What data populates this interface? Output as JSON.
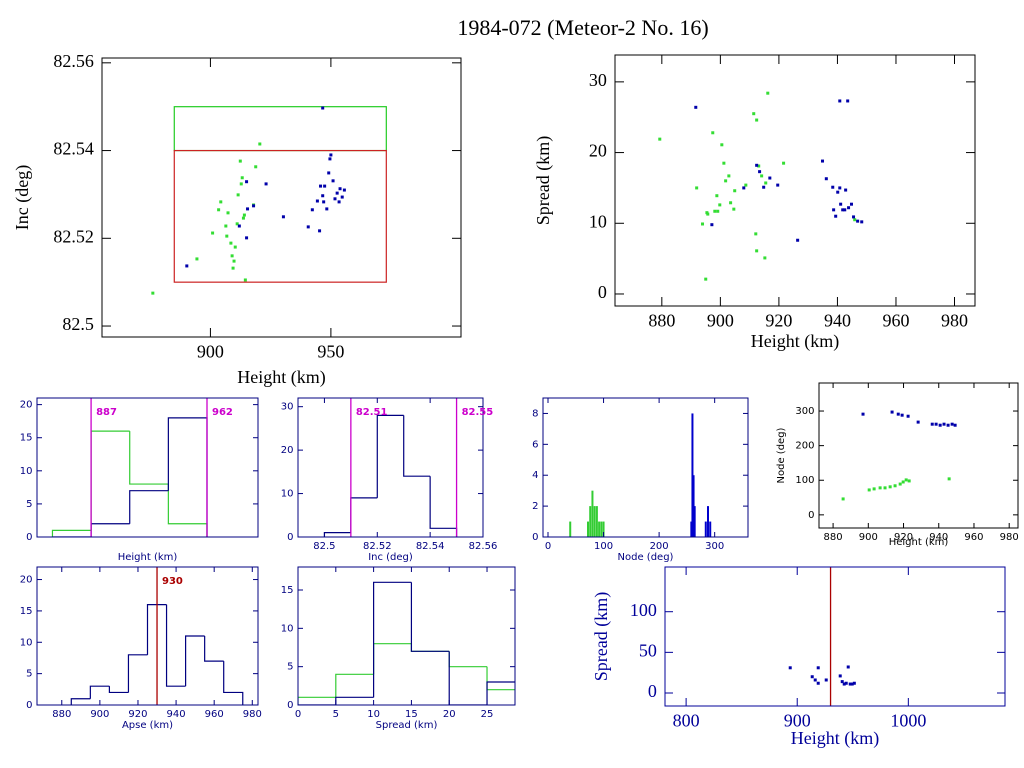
{
  "title": "1984-072 (Meteor-2 No. 16)",
  "chart_data": [
    {
      "type": "scatter",
      "xlabel": "Height (km)",
      "ylabel": "Inc (deg)",
      "text_color": "#000000",
      "xlim": [
        855,
        1004
      ],
      "ylim": [
        82.4975,
        82.5611
      ],
      "xticks": [
        900,
        950
      ],
      "yticks": [
        82.5,
        82.52,
        82.54,
        82.56
      ],
      "boxes": [
        {
          "color": "#22cc22",
          "x": [
            885,
            973
          ],
          "y": [
            82.54,
            82.55
          ]
        },
        {
          "color": "#cc2222",
          "x": [
            885,
            973
          ],
          "y": [
            82.51,
            82.54
          ]
        }
      ],
      "series": [
        {
          "color": "#33dd33",
          "x": [
            876.1,
            894.4,
            900.9,
            903.4,
            904.3,
            907.3,
            906.4,
            906.8,
            908.5,
            909.0,
            909.4,
            909.8,
            910.3,
            911.1,
            911.5,
            912.4,
            912.8,
            913.2,
            913.7,
            914.1,
            914.5,
            917.9,
            918.8,
            920.5
          ],
          "values": [
            82.5075,
            82.5153,
            82.5212,
            82.5265,
            82.5283,
            82.5258,
            82.5228,
            82.5205,
            82.5189,
            82.516,
            82.5132,
            82.5148,
            82.518,
            82.5233,
            82.5299,
            82.5376,
            82.5324,
            82.5338,
            82.5246,
            82.5253,
            82.5105,
            82.5276,
            82.5363,
            82.5415
          ]
        },
        {
          "color": "#0000aa",
          "x": [
            890.2,
            915.0,
            912.0,
            915.0,
            915.4,
            917.9,
            923.1,
            930.3,
            940.6,
            942.3,
            944.4,
            945.3,
            945.7,
            946.6,
            947.0,
            947.4,
            948.3,
            949.1,
            949.6,
            950.0,
            950.9,
            951.7,
            952.6,
            953.4,
            953.8,
            954.7,
            955.6,
            946.6
          ],
          "values": [
            82.5137,
            82.5329,
            82.5228,
            82.5201,
            82.5267,
            82.5274,
            82.5324,
            82.5249,
            82.5226,
            82.5265,
            82.5285,
            82.5217,
            82.5319,
            82.5297,
            82.5283,
            82.5319,
            82.5267,
            82.5349,
            82.5381,
            82.539,
            82.5331,
            82.529,
            82.5303,
            82.5283,
            82.5313,
            82.5294,
            82.531,
            82.5497
          ]
        }
      ]
    },
    {
      "type": "scatter",
      "xlabel": "Height (km)",
      "ylabel": "Spread (km)",
      "text_color": "#000000",
      "xlim": [
        864,
        987
      ],
      "ylim": [
        -1.7,
        33.8
      ],
      "xticks": [
        880,
        900,
        920,
        940,
        960,
        980
      ],
      "yticks": [
        0,
        10,
        20,
        30
      ],
      "series": [
        {
          "color": "#33dd33",
          "x": [
            879.3,
            895.0,
            891.9,
            893.9,
            895.4,
            895.7,
            897.4,
            898.1,
            898.8,
            899.1,
            899.8,
            900.5,
            901.2,
            901.8,
            902.9,
            903.5,
            904.6,
            904.9,
            911.4,
            912.4,
            912.1,
            912.4,
            913.1,
            914.1,
            915.5,
            915.2,
            916.2,
            921.6,
            908.7,
            945.9
          ],
          "values": [
            21.9,
            2.1,
            15.0,
            9.9,
            11.5,
            11.3,
            22.8,
            11.7,
            13.9,
            11.7,
            12.6,
            21.1,
            18.5,
            16.0,
            16.7,
            12.9,
            12.0,
            14.6,
            25.5,
            24.6,
            8.5,
            6.1,
            18.1,
            16.7,
            15.7,
            5.1,
            28.4,
            18.5,
            15.4,
            10.5
          ]
        },
        {
          "color": "#0000aa",
          "x": [
            891.6,
            897.1,
            908.0,
            912.4,
            913.4,
            914.8,
            919.6,
            916.9,
            934.9,
            936.2,
            938.4,
            938.7,
            939.4,
            940.1,
            940.8,
            940.8,
            943.5,
            941.1,
            941.8,
            942.5,
            942.8,
            943.8,
            944.8,
            945.5,
            946.9,
            948.3,
            926.4
          ],
          "values": [
            26.4,
            9.8,
            15.0,
            18.2,
            17.3,
            15.1,
            15.4,
            16.4,
            18.8,
            16.3,
            15.1,
            11.9,
            11.0,
            14.4,
            15.0,
            27.3,
            27.3,
            12.7,
            11.9,
            11.9,
            14.7,
            12.2,
            12.7,
            10.9,
            10.3,
            10.2,
            7.6
          ]
        }
      ]
    },
    {
      "type": "histogram",
      "xlabel": "Height (km)",
      "text_color": "#000080",
      "xlim": [
        852,
        995
      ],
      "ylim": [
        0,
        21
      ],
      "yticks": [
        0,
        5,
        10,
        15,
        20
      ],
      "bins": [
        862,
        887,
        912,
        937,
        962
      ],
      "vlines": [
        {
          "x": 887,
          "color": "#cc00cc",
          "labeled": true
        },
        {
          "x": 962,
          "color": "#cc00cc",
          "labeled": true
        }
      ],
      "series": [
        {
          "color": "#33cc33",
          "values": [
            1,
            16,
            8,
            2
          ]
        },
        {
          "color": "#000080",
          "values": [
            0,
            2,
            7,
            18
          ]
        }
      ]
    },
    {
      "type": "histogram",
      "xlabel": "Inc (deg)",
      "text_color": "#000080",
      "xlim": [
        82.49,
        82.56
      ],
      "ylim": [
        0,
        32
      ],
      "xticks": [
        82.5,
        82.52,
        82.54,
        82.56
      ],
      "yticks": [
        0,
        10,
        20,
        30
      ],
      "bins": [
        82.5,
        82.51,
        82.52,
        82.53,
        82.54,
        82.55
      ],
      "vlines": [
        {
          "x": 82.51,
          "color": "#cc00cc",
          "labeled": true
        },
        {
          "x": 82.55,
          "color": "#cc00cc",
          "labeled": true
        }
      ],
      "series": [
        {
          "color": "#000080",
          "values": [
            1,
            9,
            28,
            14,
            2
          ]
        }
      ]
    },
    {
      "type": "spike",
      "xlabel": "Node (deg)",
      "text_color": "#000080",
      "xlim": [
        -9,
        360
      ],
      "ylim": [
        0,
        9
      ],
      "xticks": [
        0,
        100,
        200,
        300
      ],
      "yticks": [
        0,
        2,
        4,
        6,
        8
      ],
      "series": [
        {
          "color": "#33cc33",
          "x": [
            40,
            72,
            76,
            80,
            84,
            88,
            92,
            96,
            100
          ],
          "values": [
            1,
            1,
            2,
            3,
            2,
            2,
            1,
            1,
            1
          ]
        },
        {
          "color": "#0000cc",
          "x": [
            258,
            260,
            262,
            264,
            284,
            288,
            292
          ],
          "values": [
            1,
            8,
            4,
            2,
            1,
            2,
            1
          ]
        }
      ]
    },
    {
      "type": "scatter",
      "xlabel": "Height (km)",
      "ylabel": "Node (deg)",
      "text_color": "#000000",
      "xlim": [
        872,
        985
      ],
      "ylim": [
        -38,
        381
      ],
      "xticks": [
        880,
        900,
        920,
        940,
        960,
        980
      ],
      "yticks": [
        0,
        100,
        200,
        300
      ],
      "series": [
        {
          "color": "#0000aa",
          "x": [
            897,
            913.5,
            917,
            919.2,
            922.6,
            928.3,
            936.3,
            938.5,
            940.8,
            943,
            945.3,
            947.6,
            949.3
          ],
          "values": [
            291,
            297,
            291,
            288,
            285,
            268,
            262,
            262,
            259,
            262,
            259,
            262,
            259
          ]
        },
        {
          "color": "#33dd33",
          "x": [
            885.7,
            900.5,
            903.3,
            906.7,
            909.5,
            912.4,
            915.2,
            918.1,
            919.8,
            921.5,
            923.2,
            945.9
          ],
          "values": [
            46,
            72,
            75,
            78,
            78,
            81,
            84,
            89,
            95,
            101,
            98,
            104
          ]
        }
      ]
    },
    {
      "type": "histogram",
      "xlabel": "Apse (km)",
      "text_color": "#000080",
      "xlim": [
        867,
        983
      ],
      "ylim": [
        0,
        22
      ],
      "xticks": [
        880,
        900,
        920,
        940,
        960,
        980
      ],
      "yticks": [
        0,
        5,
        10,
        15,
        20
      ],
      "bins": [
        885,
        895,
        905,
        915,
        925,
        935,
        945,
        955,
        965,
        975
      ],
      "vlines": [
        {
          "x": 930,
          "color": "#aa0000",
          "labeled": true
        }
      ],
      "series": [
        {
          "color": "#000080",
          "values": [
            1,
            3,
            2,
            8,
            16,
            3,
            11,
            7,
            2
          ]
        }
      ]
    },
    {
      "type": "histogram",
      "xlabel": "Spread (km)",
      "text_color": "#000080",
      "xlim": [
        0,
        28.7
      ],
      "ylim": [
        0,
        18
      ],
      "xticks": [
        0,
        5,
        10,
        15,
        20,
        25
      ],
      "yticks": [
        0,
        5,
        10,
        15
      ],
      "bins": [
        0,
        5,
        10,
        15,
        20,
        25,
        30
      ],
      "series": [
        {
          "color": "#33cc33",
          "values": [
            1,
            4,
            8,
            7,
            5,
            2
          ]
        },
        {
          "color": "#000080",
          "values": [
            0,
            1,
            16,
            7,
            0,
            3
          ]
        }
      ]
    },
    {
      "type": "scatter",
      "xlabel": "Height (km)",
      "ylabel": "Spread (km)",
      "text_color": "#000099",
      "xlim": [
        781,
        1087
      ],
      "ylim": [
        -16,
        155
      ],
      "xticks": [
        800,
        900,
        1000
      ],
      "yticks": [
        0,
        50,
        100
      ],
      "vlines": [
        {
          "x": 930,
          "color": "#aa0000",
          "labeled": false
        }
      ],
      "series": [
        {
          "color": "#0000aa",
          "x": [
            918.9,
            913.5,
            916.2,
            918.9,
            926.1,
            938.7,
            940.5,
            942.3,
            944.1,
            945.9,
            947.7,
            949.5,
            951.4,
            893.7
          ],
          "values": [
            31,
            20,
            16,
            12,
            16,
            21,
            14,
            11,
            12,
            32,
            11,
            11,
            12,
            31
          ]
        }
      ]
    }
  ]
}
